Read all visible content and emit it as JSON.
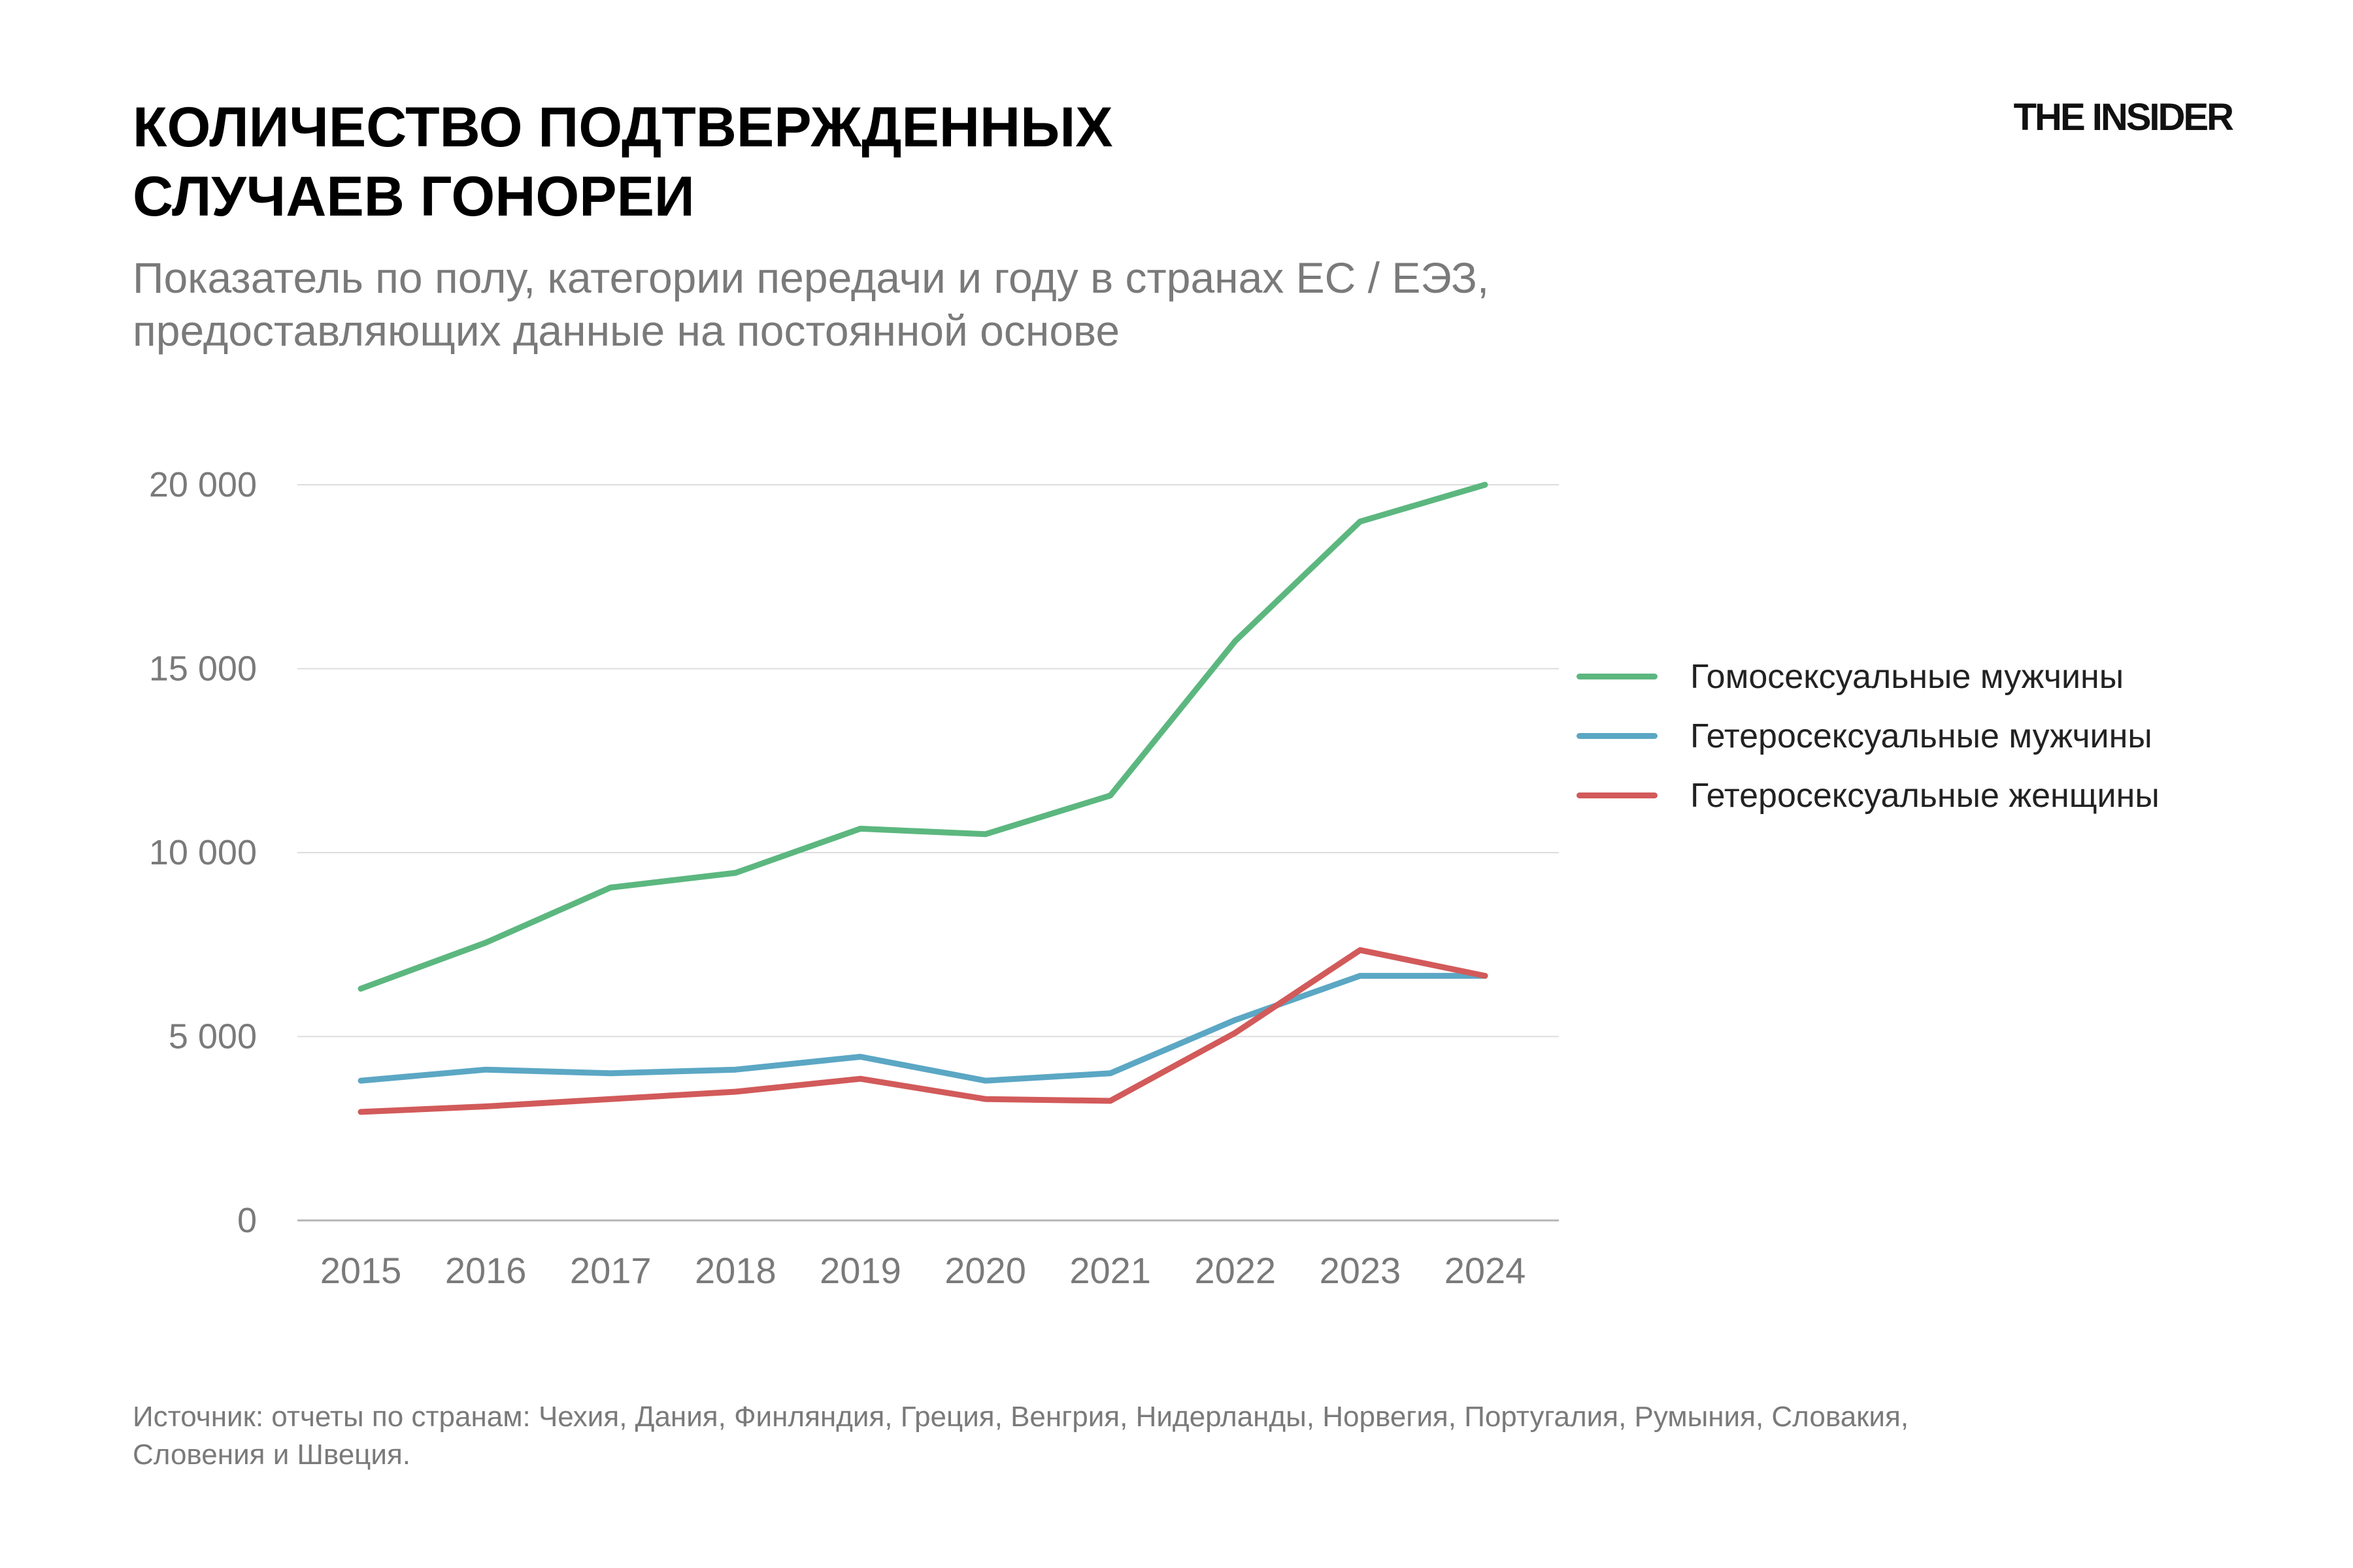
{
  "header": {
    "title_line1": "КОЛИЧЕСТВО ПОДТВЕРЖДЕННЫХ",
    "title_line2": "СЛУЧАЕВ ГОНОРЕИ",
    "subtitle_line1": "Показатель по полу, категории передачи и году в странах ЕС / ЕЭЗ,",
    "subtitle_line2": "предоставляющих данные на постоянной основе",
    "brand": "THE INSIDER"
  },
  "source": {
    "line1": "Источник: отчеты по странам: Чехия, Дания, Финляндия, Греция, Венгрия, Нидерланды, Норвегия, Португалия, Румыния, Словакия,",
    "line2": "Словения и Швеция."
  },
  "chart_data": {
    "type": "line",
    "title": "КОЛИЧЕСТВО ПОДТВЕРЖДЕННЫХ СЛУЧАЕВ ГОНОРЕИ",
    "x": [
      "2015",
      "2016",
      "2017",
      "2018",
      "2019",
      "2020",
      "2021",
      "2022",
      "2023",
      "2024"
    ],
    "ylim": [
      0,
      20000
    ],
    "yticks": [
      0,
      5000,
      10000,
      15000,
      20000
    ],
    "ytick_labels": [
      "0",
      "5 000",
      "10 000",
      "15 000",
      "20 000"
    ],
    "grid": true,
    "legend_position": "right",
    "series": [
      {
        "name": "Гомосексуальные мужчины",
        "color": "#5cb77f",
        "values": [
          6300,
          7550,
          9050,
          9450,
          10650,
          10500,
          11550,
          15750,
          19000,
          20000
        ]
      },
      {
        "name": "Гетеросексуальные мужчины",
        "color": "#5ba7c4",
        "values": [
          3800,
          4100,
          4000,
          4100,
          4450,
          3800,
          4000,
          5450,
          6650,
          6650
        ]
      },
      {
        "name": "Гетеросексуальные женщины",
        "color": "#d25a5a",
        "values": [
          2950,
          3100,
          3300,
          3500,
          3850,
          3300,
          3250,
          5100,
          7350,
          6650
        ]
      }
    ]
  }
}
